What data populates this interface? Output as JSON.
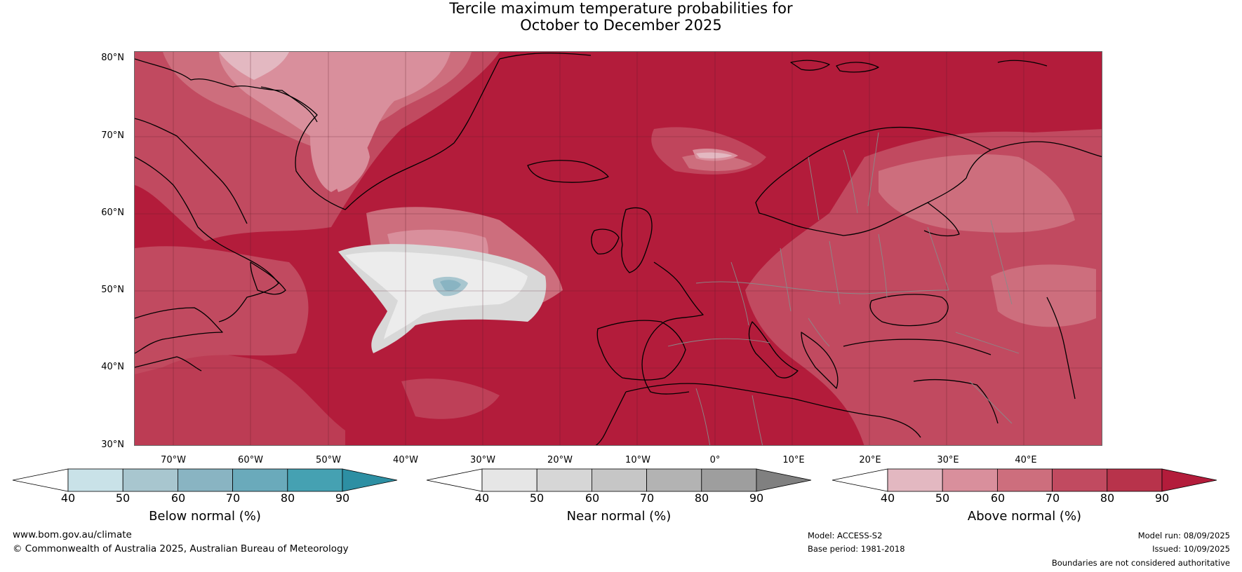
{
  "title": {
    "line1": "Tercile maximum temperature probabilities for",
    "line2": "October to December 2025"
  },
  "map": {
    "lat_labels": [
      "80°N",
      "70°N",
      "60°N",
      "50°N",
      "40°N",
      "30°N"
    ],
    "lon_labels": [
      "70°W",
      "60°W",
      "50°W",
      "40°W",
      "30°W",
      "20°W",
      "10°W",
      "0°",
      "10°E",
      "20°E",
      "30°E",
      "40°E"
    ],
    "colors": {
      "ocean_base": "#b31c3b",
      "above_50": "#e3b8c1",
      "above_60": "#d98f9c",
      "above_70": "#cd6e7d",
      "above_80": "#c14a60",
      "near_40": "#ececec",
      "near_50": "#d8d8d8",
      "below_50": "#a8c6cf",
      "coastline": "#000000",
      "borders": "#888888"
    }
  },
  "colorbars": [
    {
      "name": "below",
      "title": "Below normal (%)",
      "ticks": [
        "40",
        "50",
        "60",
        "70",
        "80",
        "90"
      ],
      "colors": [
        "#ffffff",
        "#c9e2e8",
        "#a8c6cf",
        "#89b4c2",
        "#6aaabb",
        "#45a1b2",
        "#2d8fa3"
      ]
    },
    {
      "name": "near",
      "title": "Near normal (%)",
      "ticks": [
        "40",
        "50",
        "60",
        "70",
        "80",
        "90"
      ],
      "colors": [
        "#ffffff",
        "#e6e6e6",
        "#d6d6d6",
        "#c6c6c6",
        "#b3b3b3",
        "#9e9e9e",
        "#808080"
      ]
    },
    {
      "name": "above",
      "title": "Above normal (%)",
      "ticks": [
        "40",
        "50",
        "60",
        "70",
        "80",
        "90"
      ],
      "colors": [
        "#ffffff",
        "#e3b8c1",
        "#d98f9c",
        "#cd6e7d",
        "#c14a60",
        "#b8334b",
        "#b31c3b"
      ]
    }
  ],
  "footer": {
    "website": "www.bom.gov.au/climate",
    "copyright": "© Commonwealth of Australia 2025, Australian Bureau of Meteorology",
    "model": "Model: ACCESS-S2",
    "base_period": "Base period: 1981-2018",
    "model_run": "Model run: 08/09/2025",
    "issued": "Issued: 10/09/2025",
    "disclaimer": "Boundaries are not considered authoritative"
  }
}
